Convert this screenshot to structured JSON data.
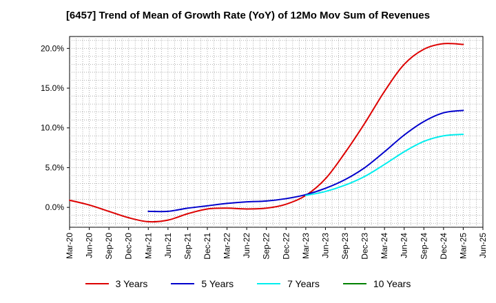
{
  "chart_data": {
    "type": "line",
    "title": "[6457]  Trend of Mean of Growth Rate (YoY) of 12Mo Mov Sum of Revenues",
    "xlabel": "",
    "ylabel": "",
    "ylim": [
      -2.5,
      21.5
    ],
    "y_ticks": [
      0.0,
      5.0,
      10.0,
      15.0,
      20.0
    ],
    "y_tick_labels": [
      "0.0%",
      "5.0%",
      "10.0%",
      "15.0%",
      "20.0%"
    ],
    "categories": [
      "Mar-20",
      "Jun-20",
      "Sep-20",
      "Dec-20",
      "Mar-21",
      "Jun-21",
      "Sep-21",
      "Dec-21",
      "Mar-22",
      "Jun-22",
      "Sep-22",
      "Dec-22",
      "Mar-23",
      "Jun-23",
      "Sep-23",
      "Dec-23",
      "Mar-24",
      "Jun-24",
      "Sep-24",
      "Dec-24",
      "Mar-25",
      "Jun-25"
    ],
    "grid": true,
    "legend_position": "bottom",
    "series": [
      {
        "name": "3 Years",
        "color": "#dd0000",
        "values": [
          0.9,
          0.3,
          -0.5,
          -1.3,
          -1.8,
          -1.6,
          -0.8,
          -0.2,
          -0.1,
          -0.2,
          -0.1,
          0.4,
          1.5,
          3.6,
          6.9,
          10.6,
          14.6,
          18.0,
          19.9,
          20.6,
          20.5,
          null
        ]
      },
      {
        "name": "5 Years",
        "color": "#0000cc",
        "values": [
          null,
          null,
          null,
          null,
          -0.5,
          -0.5,
          -0.1,
          0.2,
          0.5,
          0.7,
          0.8,
          1.1,
          1.6,
          2.4,
          3.5,
          5.0,
          7.0,
          9.1,
          10.8,
          11.9,
          12.2,
          null
        ]
      },
      {
        "name": "7 Years",
        "color": "#00eeee",
        "values": [
          null,
          null,
          null,
          null,
          null,
          null,
          null,
          null,
          null,
          null,
          null,
          null,
          1.5,
          2.0,
          2.8,
          3.9,
          5.4,
          7.0,
          8.3,
          9.0,
          9.2,
          null
        ]
      },
      {
        "name": "10 Years",
        "color": "#008000",
        "values": [
          null,
          null,
          null,
          null,
          null,
          null,
          null,
          null,
          null,
          null,
          null,
          null,
          null,
          null,
          null,
          null,
          null,
          null,
          null,
          null,
          null,
          null
        ]
      }
    ]
  }
}
